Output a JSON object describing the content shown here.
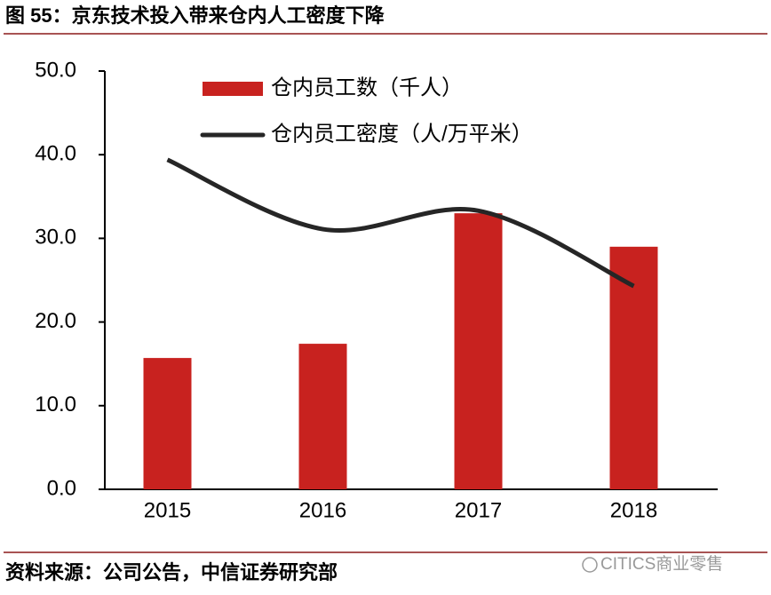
{
  "header": {
    "title": "图 55：京东技术投入带来仓内人工密度下降"
  },
  "chart_data": {
    "type": "bar_line",
    "categories": [
      "2015",
      "2016",
      "2017",
      "2018"
    ],
    "series": [
      {
        "name": "仓内员工数（千人）",
        "color": "#c8221f",
        "type": "bar",
        "values": [
          15.7,
          17.4,
          33.0,
          29.0
        ]
      },
      {
        "name": "仓内员工密度（人/万平米）",
        "color": "#262626",
        "type": "line",
        "values": [
          39.4,
          31.1,
          33.3,
          24.3
        ]
      }
    ],
    "ylim": [
      0,
      50
    ],
    "yticks": [
      {
        "value": 0,
        "label": "0.0"
      },
      {
        "value": 10,
        "label": "10.0"
      },
      {
        "value": 20,
        "label": "20.0"
      },
      {
        "value": 30,
        "label": "30.0"
      },
      {
        "value": 40,
        "label": "40.0"
      },
      {
        "value": 50,
        "label": "50.0"
      }
    ],
    "grid": false
  },
  "footer": {
    "source": "资料来源：公司公告，中信证券研究部",
    "watermark": "CITICS商业零售"
  }
}
